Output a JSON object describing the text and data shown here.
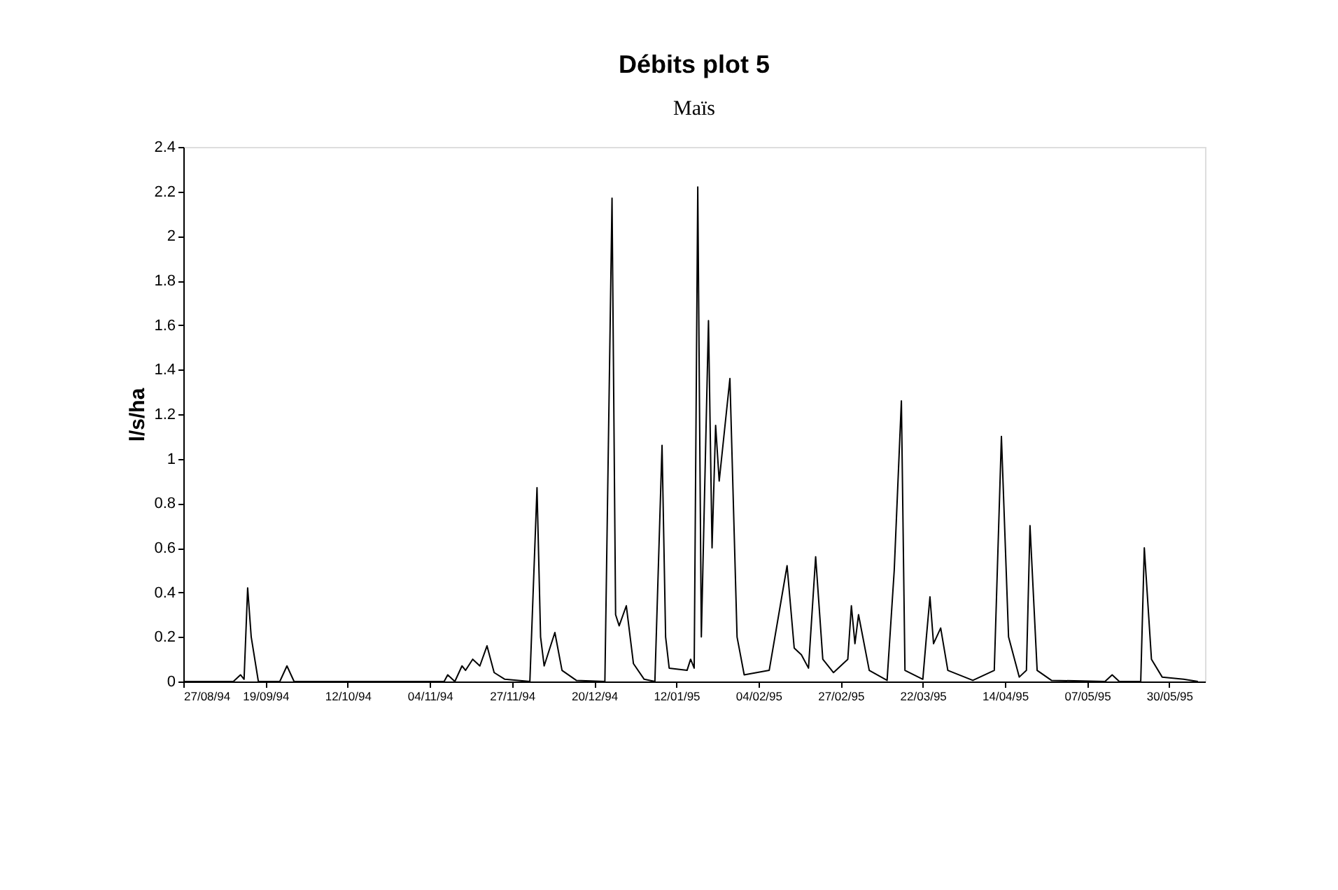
{
  "chart_data": {
    "type": "line",
    "title": "Débits plot 5",
    "subtitle": "Maïs",
    "ylabel": "l/s/ha",
    "x": [
      "1994-08-27",
      "1994-09-10",
      "1994-09-12",
      "1994-09-13",
      "1994-09-14",
      "1994-09-15",
      "1994-09-17",
      "1994-09-23",
      "1994-09-25",
      "1994-09-27",
      "1994-11-08",
      "1994-11-09",
      "1994-11-11",
      "1994-11-13",
      "1994-11-14",
      "1994-11-16",
      "1994-11-18",
      "1994-11-20",
      "1994-11-22",
      "1994-11-25",
      "1994-12-02",
      "1994-12-04",
      "1994-12-05",
      "1994-12-06",
      "1994-12-09",
      "1994-12-11",
      "1994-12-15",
      "1994-12-23",
      "1994-12-25",
      "1994-12-26",
      "1994-12-27",
      "1994-12-29",
      "1994-12-31",
      "1995-01-03",
      "1995-01-06",
      "1995-01-08",
      "1995-01-09",
      "1995-01-10",
      "1995-01-15",
      "1995-01-16",
      "1995-01-17",
      "1995-01-18",
      "1995-01-19",
      "1995-01-21",
      "1995-01-22",
      "1995-01-23",
      "1995-01-24",
      "1995-01-27",
      "1995-01-29",
      "1995-01-31",
      "1995-02-07",
      "1995-02-12",
      "1995-02-14",
      "1995-02-16",
      "1995-02-18",
      "1995-02-20",
      "1995-02-22",
      "1995-02-25",
      "1995-03-01",
      "1995-03-02",
      "1995-03-03",
      "1995-03-04",
      "1995-03-07",
      "1995-03-12",
      "1995-03-14",
      "1995-03-16",
      "1995-03-17",
      "1995-03-22",
      "1995-03-23",
      "1995-03-24",
      "1995-03-25",
      "1995-03-27",
      "1995-03-29",
      "1995-04-05",
      "1995-04-11",
      "1995-04-13",
      "1995-04-15",
      "1995-04-18",
      "1995-04-20",
      "1995-04-21",
      "1995-04-23",
      "1995-04-27",
      "1995-05-12",
      "1995-05-14",
      "1995-05-16",
      "1995-05-22",
      "1995-05-23",
      "1995-05-25",
      "1995-05-28",
      "1995-06-03",
      "1995-06-07"
    ],
    "series": [
      {
        "color": "#000000",
        "values": [
          0,
          0,
          0.03,
          0.01,
          0.42,
          0.2,
          0,
          0,
          0.07,
          0,
          0,
          0.03,
          0,
          0.07,
          0.05,
          0.1,
          0.07,
          0.16,
          0.04,
          0.01,
          0,
          0.87,
          0.2,
          0.07,
          0.22,
          0.05,
          0.005,
          0,
          2.17,
          0.3,
          0.25,
          0.34,
          0.08,
          0.01,
          0,
          1.06,
          0.2,
          0.06,
          0.05,
          0.1,
          0.06,
          2.22,
          0.2,
          1.62,
          0.6,
          1.15,
          0.9,
          1.36,
          0.2,
          0.03,
          0.05,
          0.52,
          0.15,
          0.12,
          0.06,
          0.56,
          0.1,
          0.04,
          0.1,
          0.34,
          0.17,
          0.3,
          0.05,
          0.005,
          0.5,
          1.26,
          0.05,
          0.01,
          0.2,
          0.38,
          0.17,
          0.24,
          0.05,
          0.005,
          0.05,
          1.1,
          0.2,
          0.02,
          0.05,
          0.7,
          0.05,
          0.005,
          0,
          0.03,
          0,
          0,
          0.6,
          0.1,
          0.02,
          0.01,
          0
        ]
      }
    ],
    "xlim": [
      "1994-08-27",
      "1995-06-09"
    ],
    "xticks": [
      {
        "value": "1994-08-27",
        "label": "27/08/94"
      },
      {
        "value": "1994-09-19",
        "label": "19/09/94"
      },
      {
        "value": "1994-10-12",
        "label": "12/10/94"
      },
      {
        "value": "1994-11-04",
        "label": "04/11/94"
      },
      {
        "value": "1994-11-27",
        "label": "27/11/94"
      },
      {
        "value": "1994-12-20",
        "label": "20/12/94"
      },
      {
        "value": "1995-01-12",
        "label": "12/01/95"
      },
      {
        "value": "1995-02-04",
        "label": "04/02/95"
      },
      {
        "value": "1995-02-27",
        "label": "27/02/95"
      },
      {
        "value": "1995-03-22",
        "label": "22/03/95"
      },
      {
        "value": "1995-04-14",
        "label": "14/04/95"
      },
      {
        "value": "1995-05-07",
        "label": "07/05/95"
      },
      {
        "value": "1995-05-30",
        "label": "30/05/95"
      }
    ],
    "ylim": [
      0,
      2.4
    ],
    "yticks": [
      0,
      0.2,
      0.4,
      0.6,
      0.8,
      1,
      1.2,
      1.4,
      1.6,
      1.8,
      2,
      2.2,
      2.4
    ],
    "grid": false,
    "legend": false,
    "marker": "none",
    "line_style": "solid"
  }
}
